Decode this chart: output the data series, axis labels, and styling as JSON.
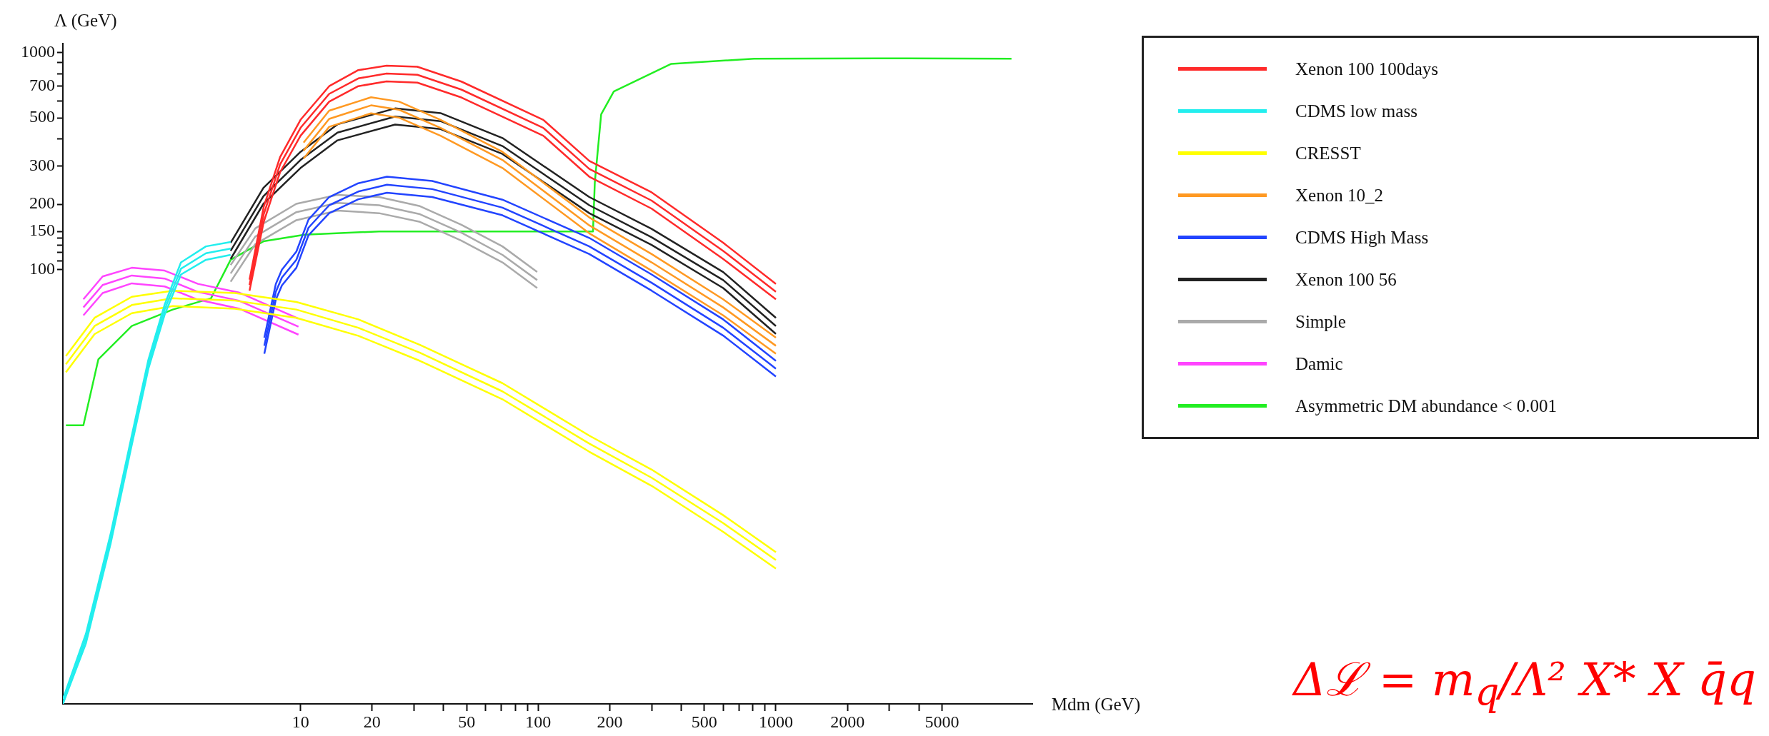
{
  "chart_data": {
    "type": "line",
    "xlabel": "Mdm (GeV)",
    "ylabel": "Λ (GeV)",
    "log": "xy",
    "grid": false,
    "legend": "top right",
    "marker": "none",
    "line_style": "solid",
    "xlim": [
      1,
      12000
    ],
    "ylim": [
      1,
      1100
    ],
    "xticks": [
      10,
      20,
      {
        "value": 30,
        "label": null
      },
      {
        "value": 40,
        "label": null
      },
      50,
      {
        "value": 60,
        "label": null
      },
      {
        "value": 70,
        "label": null
      },
      {
        "value": 80,
        "label": null
      },
      {
        "value": 90,
        "label": null
      },
      100,
      200,
      {
        "value": 300,
        "label": null
      },
      {
        "value": 400,
        "label": null
      },
      500,
      {
        "value": 600,
        "label": null
      },
      {
        "value": 700,
        "label": null
      },
      {
        "value": 800,
        "label": null
      },
      {
        "value": 900,
        "label": null
      },
      1000,
      2000,
      {
        "value": 3000,
        "label": null
      },
      {
        "value": 4000,
        "label": null
      },
      5000
    ],
    "yticks": [
      100,
      {
        "value": 110,
        "label": null
      },
      {
        "value": 120,
        "label": null
      },
      {
        "value": 130,
        "label": null
      },
      {
        "value": 140,
        "label": null
      },
      150,
      200,
      300,
      {
        "value": 400,
        "label": null
      },
      500,
      {
        "value": 600,
        "label": null
      },
      700,
      {
        "value": 800,
        "label": null
      },
      {
        "value": 900,
        "label": null
      },
      1000
    ],
    "series": [
      {
        "name": "Xenon 100 100days",
        "color": "#ff2a2a",
        "x": [
          6.1,
          7,
          8.2,
          10,
          13.2,
          17.5,
          23,
          31,
          47.5,
          105,
          164,
          300,
          600,
          1000
        ],
        "values": [
          85,
          180,
          305,
          450,
          645,
          760,
          800,
          790,
          675,
          450,
          291,
          208,
          122,
          79
        ]
      },
      {
        "color": "#ff2a2a",
        "x": [
          6.1,
          7,
          8.2,
          10,
          13.2,
          17.5,
          23,
          31,
          47.5,
          105,
          164,
          300,
          600,
          1000
        ],
        "values": [
          90,
          195,
          330,
          490,
          700,
          830,
          870,
          860,
          735,
          490,
          317,
          227,
          133,
          86
        ]
      },
      {
        "color": "#ff2a2a",
        "x": [
          6.1,
          7,
          8.2,
          10,
          13.2,
          17.5,
          23,
          31,
          47.5,
          105,
          164,
          300,
          600,
          1000
        ],
        "values": [
          80,
          166,
          281,
          414,
          594,
          700,
          736,
          727,
          621,
          414,
          268,
          191,
          112,
          73
        ]
      },
      {
        "name": "CDMS low mass",
        "color": "#22eeee",
        "x": [
          1,
          1.25,
          1.59,
          1.94,
          2.29,
          2.68,
          3.14,
          4,
          5.08
        ],
        "values": [
          1,
          2,
          5.8,
          16,
          36.7,
          65.5,
          101,
          119,
          125
        ]
      },
      {
        "color": "#22eeee",
        "x": [
          1,
          1.25,
          1.59,
          1.94,
          2.29,
          2.68,
          3.14,
          4,
          5.08
        ],
        "values": [
          1.05,
          2.1,
          6.1,
          16.8,
          38.5,
          69,
          108,
          128,
          134
        ]
      },
      {
        "color": "#22eeee",
        "x": [
          1,
          1.25,
          1.59,
          1.94,
          2.29,
          2.68,
          3.14,
          4,
          5.08
        ],
        "values": [
          1,
          1.9,
          5.5,
          15.2,
          35,
          62,
          95,
          111,
          117
        ]
      },
      {
        "name": "CRESST",
        "color": "#ffff00",
        "x": [
          1.03,
          1.36,
          1.95,
          2.9,
          5.3,
          9.6,
          17.5,
          31.8,
          70.7,
          164,
          300,
          600,
          1000
        ],
        "values": [
          36.7,
          55,
          68.7,
          73.8,
          72,
          65.5,
          54,
          41.4,
          27.5,
          15.8,
          11,
          6.8,
          4.6
        ]
      },
      {
        "color": "#ffff00",
        "x": [
          1.03,
          1.36,
          1.95,
          2.9,
          5.3,
          9.6,
          17.5,
          31.8,
          70.7,
          164,
          300,
          600,
          1000
        ],
        "values": [
          40,
          60,
          75,
          80,
          78,
          71,
          59,
          45,
          30,
          17.2,
          12,
          7.4,
          5
        ]
      },
      {
        "color": "#ffff00",
        "x": [
          1.03,
          1.36,
          1.95,
          2.9,
          5.3,
          9.6,
          17.5,
          31.8,
          70.7,
          164,
          300,
          600,
          1000
        ],
        "values": [
          33.7,
          50.5,
          63,
          68,
          66,
          60,
          49.6,
          38,
          25.3,
          14.5,
          10.1,
          6.2,
          4.2
        ]
      },
      {
        "name": "Xenon 10_2",
        "color": "#ff9922",
        "x": [
          10.3,
          13.2,
          19.8,
          26,
          38.8,
          70.7,
          164,
          300,
          600,
          1000
        ],
        "values": [
          353,
          495,
          571,
          545,
          450,
          320,
          160,
          108,
          67,
          44.6
        ]
      },
      {
        "color": "#ff9922",
        "x": [
          10.3,
          13.2,
          19.8,
          26,
          38.8,
          70.7,
          164,
          300,
          600,
          1000
        ],
        "values": [
          385,
          540,
          622,
          594,
          490,
          349,
          174,
          118,
          73,
          48.6
        ]
      },
      {
        "color": "#ff9922",
        "x": [
          10.3,
          13.2,
          19.8,
          26,
          38.8,
          70.7,
          164,
          300,
          600,
          1000
        ],
        "values": [
          325,
          455,
          525,
          501,
          414,
          294,
          147,
          99,
          61.6,
          41
        ]
      },
      {
        "name": "CDMS High Mass",
        "color": "#2244ff",
        "x": [
          7.04,
          7.87,
          8.35,
          9.6,
          10.8,
          13.2,
          17.5,
          23.1,
          35.8,
          70.7,
          164,
          300,
          600,
          1000
        ],
        "values": [
          44.6,
          79,
          92,
          111,
          156,
          198,
          229,
          246,
          235,
          193,
          128,
          87,
          54,
          35
        ]
      },
      {
        "color": "#2244ff",
        "x": [
          7.04,
          7.87,
          8.35,
          9.6,
          10.8,
          13.2,
          17.5,
          23.1,
          35.8,
          70.7,
          164,
          300,
          600,
          1000
        ],
        "values": [
          48.6,
          86,
          100,
          121,
          170,
          216,
          250,
          268,
          256,
          210,
          140,
          95,
          59,
          38
        ]
      },
      {
        "color": "#2244ff",
        "x": [
          7.04,
          7.87,
          8.35,
          9.6,
          10.8,
          13.2,
          17.5,
          23.1,
          35.8,
          70.7,
          164,
          300,
          600,
          1000
        ],
        "values": [
          41,
          72.7,
          84.6,
          102,
          144,
          182,
          211,
          226,
          216,
          178,
          118,
          80,
          49.7,
          32.2
        ]
      },
      {
        "name": "Xenon 100 56",
        "color": "#222222",
        "x": [
          5.08,
          6.98,
          10,
          14.3,
          25,
          38.8,
          70.7,
          164,
          300,
          600,
          1000
        ],
        "values": [
          122,
          218,
          320,
          428,
          507,
          483,
          371,
          198,
          141,
          89.5,
          55
        ]
      },
      {
        "color": "#222222",
        "x": [
          5.08,
          6.98,
          10,
          14.3,
          25,
          38.8,
          70.7,
          164,
          300,
          600,
          1000
        ],
        "values": [
          133,
          238,
          349,
          467,
          553,
          526,
          404,
          216,
          154,
          97.5,
          60
        ]
      },
      {
        "color": "#222222",
        "x": [
          5.08,
          6.98,
          10,
          14.3,
          25,
          38.8,
          70.7,
          164,
          300,
          600,
          1000
        ],
        "values": [
          112,
          201,
          294,
          394,
          466,
          444,
          341,
          182,
          130,
          82.3,
          50.6
        ]
      },
      {
        "name": "Simple",
        "color": "#aaaaaa",
        "x": [
          5.08,
          6.45,
          9.6,
          14.3,
          21.4,
          31.8,
          47.5,
          70.7,
          99
        ],
        "values": [
          96,
          142,
          184,
          203,
          198,
          180,
          148,
          117,
          89.5
        ]
      },
      {
        "color": "#aaaaaa",
        "x": [
          5.08,
          6.45,
          9.6,
          14.3,
          21.4,
          31.8,
          47.5,
          70.7,
          99
        ],
        "values": [
          105,
          155,
          201,
          221,
          216,
          196,
          161,
          128,
          97.6
        ]
      },
      {
        "color": "#aaaaaa",
        "x": [
          5.08,
          6.45,
          9.6,
          14.3,
          21.4,
          31.8,
          47.5,
          70.7,
          99
        ],
        "values": [
          88,
          131,
          169,
          187,
          182,
          166,
          136,
          108,
          82.3
        ]
      },
      {
        "name": "Damic",
        "color": "#ff44ff",
        "x": [
          1.22,
          1.47,
          1.95,
          2.68,
          3.7,
          5.5,
          9.8
        ],
        "values": [
          67,
          85,
          94,
          91,
          79,
          72,
          54.6
        ]
      },
      {
        "color": "#ff44ff",
        "x": [
          1.22,
          1.47,
          1.95,
          2.68,
          3.7,
          5.5,
          9.8
        ],
        "values": [
          73,
          93,
          102,
          99,
          86,
          78.5,
          59.5
        ]
      },
      {
        "color": "#ff44ff",
        "x": [
          1.22,
          1.47,
          1.95,
          2.68,
          3.7,
          5.5,
          9.8
        ],
        "values": [
          61.6,
          78,
          86.5,
          83.7,
          72.7,
          66.2,
          50.2
        ]
      },
      {
        "name": "Asymmetric DM abundance < 0.001",
        "color": "#22ee22",
        "x": [
          1.03,
          1.22,
          1.41,
          1.95,
          2.9,
          4.2,
          5.08,
          6.98,
          10.4,
          21.4,
          170,
          173,
          184,
          208,
          363,
          809,
          2670,
          9800
        ],
        "values": [
          19.2,
          19.2,
          38.6,
          55,
          65.5,
          73.8,
          111,
          135,
          145,
          150,
          150,
          252,
          519,
          662,
          887,
          937,
          940,
          937
        ]
      }
    ],
    "annotations": [
      "Δℒ = m$_{q}$/Λ² X* X q̄q"
    ]
  }
}
